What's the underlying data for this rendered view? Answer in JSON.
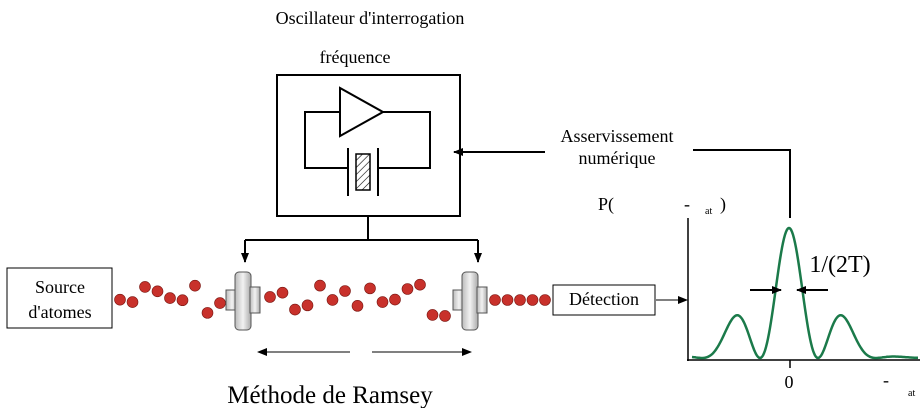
{
  "title": "Oscillateur d'interrogation",
  "oscillator_label": "fréquence",
  "feedback": [
    "Asservissement",
    "numérique"
  ],
  "source": [
    "Source",
    "d'atomes"
  ],
  "detection": "Détection",
  "plot": {
    "y_label": {
      "prefix": "P(",
      "minus": "-",
      "subscript": "at",
      "suffix": ")"
    },
    "width_label": "1/(2T)",
    "x_tick": "0",
    "x_label": {
      "minus": "-",
      "subscript": "at"
    }
  },
  "caption": "Méthode de Ramsey"
}
